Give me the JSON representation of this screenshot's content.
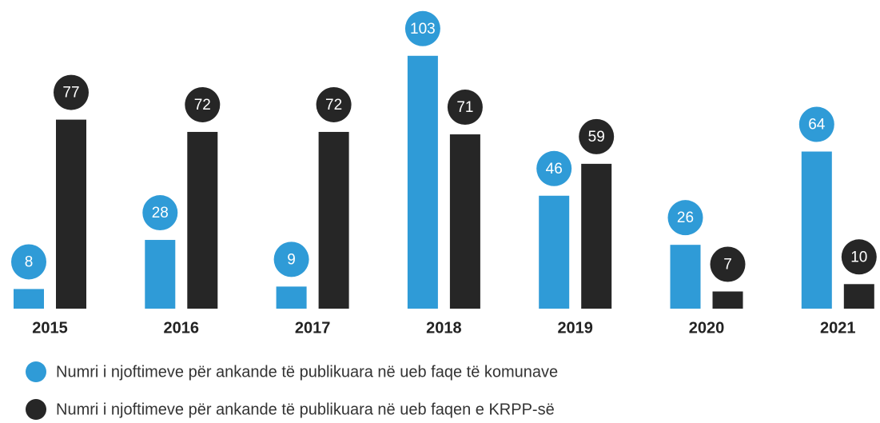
{
  "chart_data": {
    "type": "bar",
    "categories": [
      "2015",
      "2016",
      "2017",
      "2018",
      "2019",
      "2020",
      "2021"
    ],
    "series": [
      {
        "name": "Numri i njoftimeve për ankande të publikuara në ueb faqe të komunave",
        "color": "#2f9bd7",
        "values": [
          8,
          28,
          9,
          103,
          46,
          26,
          64
        ]
      },
      {
        "name": "Numri i njoftimeve për ankande të publikuara në ueb faqen e KRPP-së",
        "color": "#262626",
        "values": [
          77,
          72,
          72,
          71,
          59,
          7,
          10
        ]
      }
    ],
    "legend": "bottom-left"
  }
}
